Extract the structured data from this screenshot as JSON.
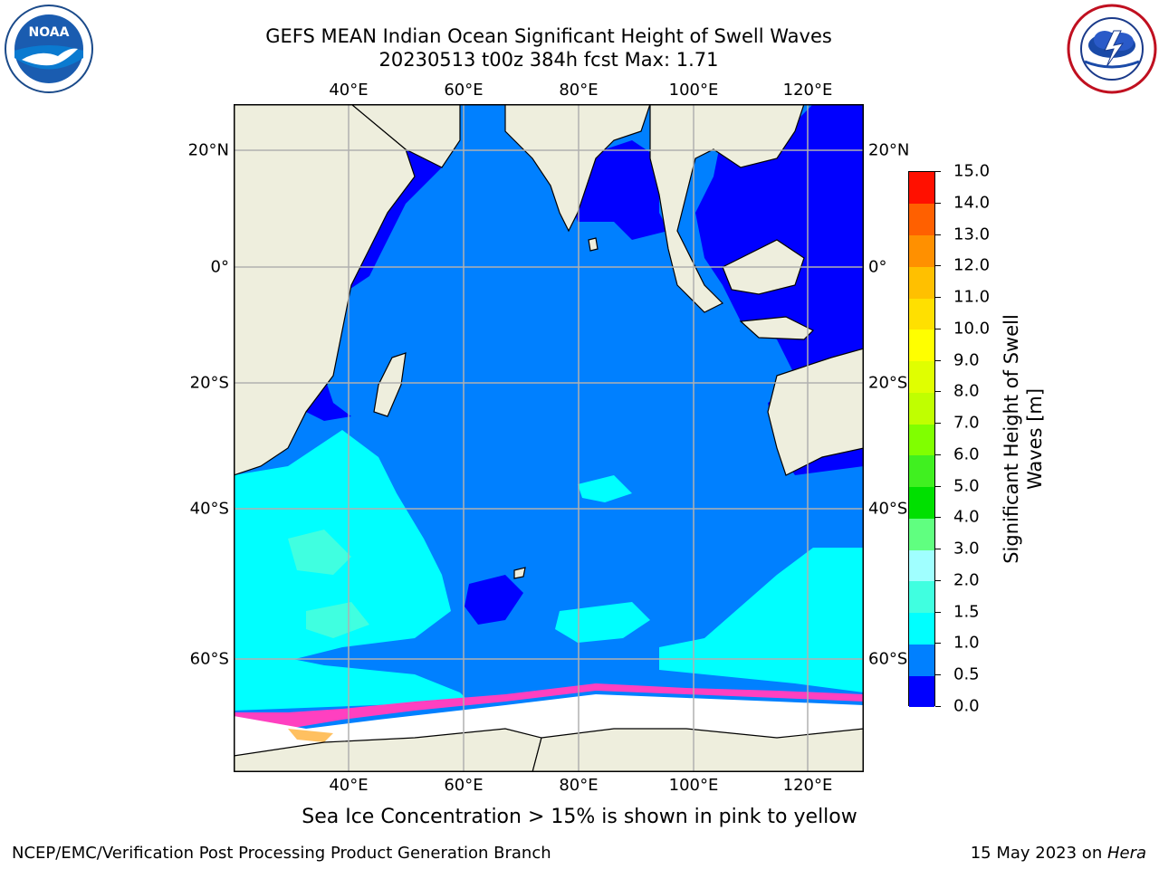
{
  "title": {
    "line1": "GEFS MEAN Indian Ocean Significant Height of Swell Waves",
    "line2": "20230513 t00z 384h fcst   Max: 1.71"
  },
  "logos": {
    "left": {
      "text": "NOAA",
      "icon": "noaa-logo-icon"
    },
    "right": {
      "icon": "national-weather-service-logo-icon"
    }
  },
  "map": {
    "lon_ticks": [
      "40°E",
      "60°E",
      "80°E",
      "100°E",
      "120°E"
    ],
    "lat_ticks": [
      "20°N",
      "0°",
      "20°S",
      "40°S",
      "60°S"
    ],
    "colors": {
      "land": "#eeeedd",
      "ocean_low": "#0000ff",
      "ocean_mid": "#0080ff",
      "ocean_high": "#00ffff",
      "ice": "#ffffff",
      "gridline": "#b0b0b0"
    }
  },
  "colorbar": {
    "title_line1": "Significant Height of Swell",
    "title_line2": "Waves [m]",
    "labels": [
      "0.0",
      "0.5",
      "1.0",
      "1.5",
      "2.0",
      "3.0",
      "4.0",
      "5.0",
      "6.0",
      "7.0",
      "8.0",
      "9.0",
      "10.0",
      "11.0",
      "12.0",
      "13.0",
      "14.0",
      "15.0"
    ],
    "colors": [
      "#0000ff",
      "#0080ff",
      "#00ffff",
      "#40ffe0",
      "#a0ffff",
      "#60ff80",
      "#00e000",
      "#40f020",
      "#80ff00",
      "#c0ff00",
      "#e0ff00",
      "#ffff00",
      "#ffe000",
      "#ffc000",
      "#ff9000",
      "#ff6000",
      "#ff1000"
    ]
  },
  "caption": "Sea Ice Concentration > 15% is shown in pink to yellow",
  "footer": {
    "left": "NCEP/EMC/Verification Post Processing Product Generation Branch",
    "right_date": "15 May 2023 on ",
    "right_machine": "Hera"
  }
}
